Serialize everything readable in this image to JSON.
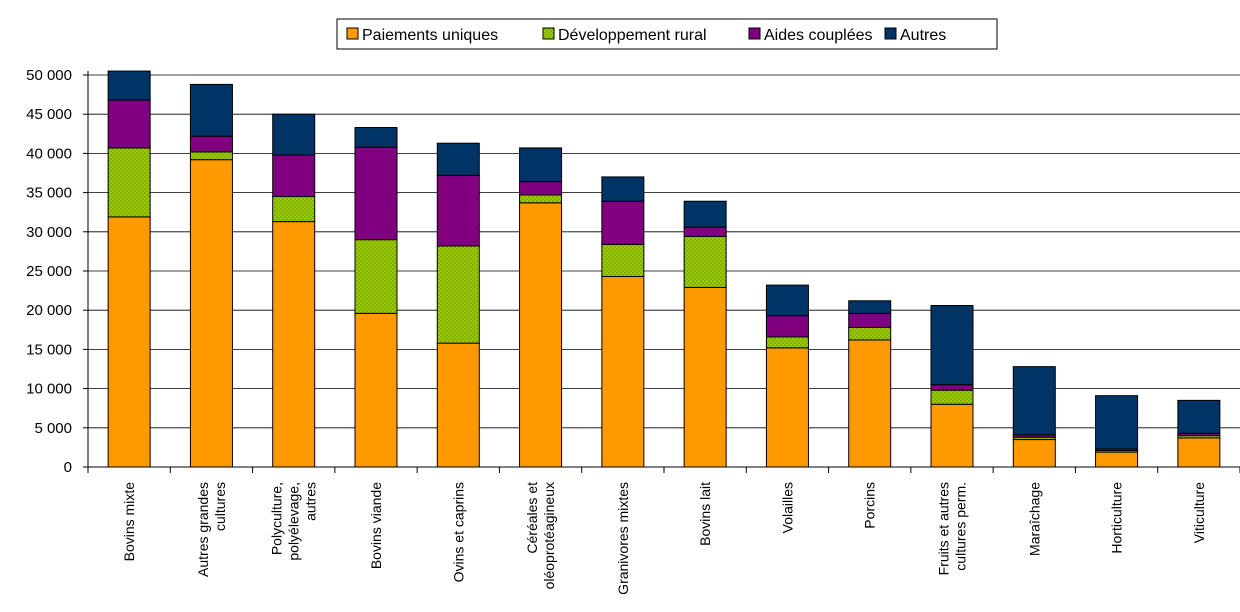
{
  "chart_data": {
    "type": "bar",
    "stacked": true,
    "categories": [
      [
        "Bovins mixte"
      ],
      [
        "Autres grandes",
        "cultures"
      ],
      [
        "Polyculture,",
        "polyélevage,",
        "autres"
      ],
      [
        "Bovins viande"
      ],
      [
        "Ovins et caprins"
      ],
      [
        "Céréales et",
        "oléoprotéagineux"
      ],
      [
        "Granivores mixtes"
      ],
      [
        "Bovins lait"
      ],
      [
        "Volailles"
      ],
      [
        "Porcins"
      ],
      [
        "Fruits et autres",
        "cultures perm."
      ],
      [
        "Maraîchage"
      ],
      [
        "Horticulture"
      ],
      [
        "Viticulture"
      ]
    ],
    "series": [
      {
        "name": "Paiements uniques",
        "color": "#FF9900",
        "pattern": "solid",
        "values": [
          31900,
          39200,
          31300,
          19600,
          15800,
          33700,
          24300,
          22900,
          15200,
          16200,
          8000,
          3500,
          1900,
          3700
        ]
      },
      {
        "name": "Développement rural",
        "color": "#99CC00",
        "pattern": "dotted",
        "values": [
          8800,
          1000,
          3200,
          9400,
          12400,
          1000,
          4100,
          6500,
          1400,
          1600,
          1800,
          300,
          200,
          300
        ]
      },
      {
        "name": "Aides couplées",
        "color": "#800080",
        "pattern": "solid",
        "values": [
          6100,
          2000,
          5300,
          11800,
          9000,
          1700,
          5500,
          1200,
          2700,
          1800,
          700,
          300,
          200,
          300
        ]
      },
      {
        "name": "Autres",
        "color": "#003366",
        "pattern": "solid",
        "values": [
          3700,
          6600,
          5200,
          2500,
          4100,
          4300,
          3100,
          3300,
          3900,
          1600,
          10100,
          8700,
          6800,
          4200
        ]
      }
    ],
    "yticks": [
      "0",
      "5 000",
      "10 000",
      "15 000",
      "20 000",
      "25 000",
      "30 000",
      "35 000",
      "40 000",
      "45 000",
      "50 000"
    ],
    "ylim": [
      0,
      50000
    ],
    "ytick_step": 5000,
    "grid": true,
    "legend_position": "top"
  }
}
